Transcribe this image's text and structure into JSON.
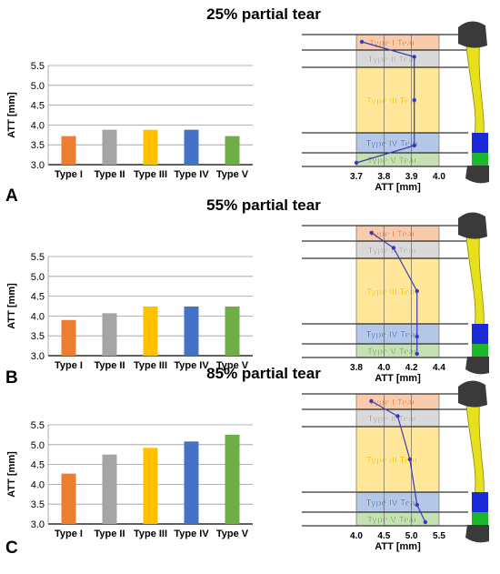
{
  "panels": [
    {
      "letter": "A",
      "title": "25% partial tear",
      "bar": {
        "type": "bar",
        "ylabel": "ATT [mm]",
        "ylim": [
          3.0,
          5.5
        ],
        "yticks": [
          "3.0",
          "3.5",
          "4.0",
          "4.5",
          "5.0",
          "5.5"
        ],
        "categories": [
          "Type I",
          "Type II",
          "Type III",
          "Type IV",
          "Type V"
        ],
        "values": [
          3.72,
          3.88,
          3.88,
          3.88,
          3.72
        ]
      },
      "profile": {
        "type": "line",
        "xlabel": "ATT [mm]",
        "xlim": [
          3.7,
          4.0
        ],
        "xticks": [
          "3.7",
          "3.8",
          "3.9",
          "4.0"
        ],
        "points": [
          3.72,
          3.91,
          3.91,
          3.91,
          3.7
        ]
      }
    },
    {
      "letter": "B",
      "title": "55% partial tear",
      "bar": {
        "type": "bar",
        "ylabel": "ATT [mm]",
        "ylim": [
          3.0,
          5.5
        ],
        "yticks": [
          "3.0",
          "3.5",
          "4.0",
          "4.5",
          "5.0",
          "5.5"
        ],
        "categories": [
          "Type I",
          "Type II",
          "Type III",
          "Type IV",
          "Type V"
        ],
        "values": [
          3.9,
          4.07,
          4.24,
          4.24,
          4.24
        ]
      },
      "profile": {
        "type": "line",
        "xlabel": "ATT [mm]",
        "xlim": [
          3.8,
          4.4
        ],
        "xticks": [
          "3.8",
          "4.0",
          "4.2",
          "4.4"
        ],
        "points": [
          3.91,
          4.07,
          4.24,
          4.24,
          4.24
        ]
      }
    },
    {
      "letter": "C",
      "title": "85% partial tear",
      "bar": {
        "type": "bar",
        "ylabel": "ATT [mm]",
        "ylim": [
          3.0,
          5.5
        ],
        "yticks": [
          "3.0",
          "3.5",
          "4.0",
          "4.5",
          "5.0",
          "5.5"
        ],
        "categories": [
          "Type I",
          "Type II",
          "Type III",
          "Type IV",
          "Type V"
        ],
        "values": [
          4.27,
          4.75,
          4.92,
          5.08,
          5.25
        ]
      },
      "profile": {
        "type": "line",
        "xlabel": "ATT [mm]",
        "xlim": [
          4.0,
          5.5
        ],
        "xticks": [
          "4.0",
          "4.5",
          "5.0",
          "5.5"
        ],
        "points": [
          4.27,
          4.75,
          4.97,
          5.1,
          5.25
        ]
      }
    }
  ],
  "tear_zones": [
    {
      "label": "Type I Tear",
      "color": "#ed7d31",
      "fill": "#f8cbad"
    },
    {
      "label": "Type II Tear",
      "color": "#a6a6a6",
      "fill": "#d9d9d9"
    },
    {
      "label": "Type III Tear",
      "color": "#ffc000",
      "fill": "#ffe699"
    },
    {
      "label": "Type IV Tear",
      "color": "#4472c4",
      "fill": "#b4c7e7"
    },
    {
      "label": "Type V Tear",
      "color": "#70ad47",
      "fill": "#c5e0b4"
    }
  ],
  "bar_colors": [
    "#ed7d31",
    "#a5a5a5",
    "#ffc000",
    "#4472c4",
    "#70ad47"
  ],
  "colors": {
    "profile_line": "#3a3ab8",
    "ligament": "#e8e01a",
    "ligament_dark": "#3a3a3a",
    "ligament_blue": "#1a2ad8",
    "ligament_green": "#1ab82a"
  }
}
